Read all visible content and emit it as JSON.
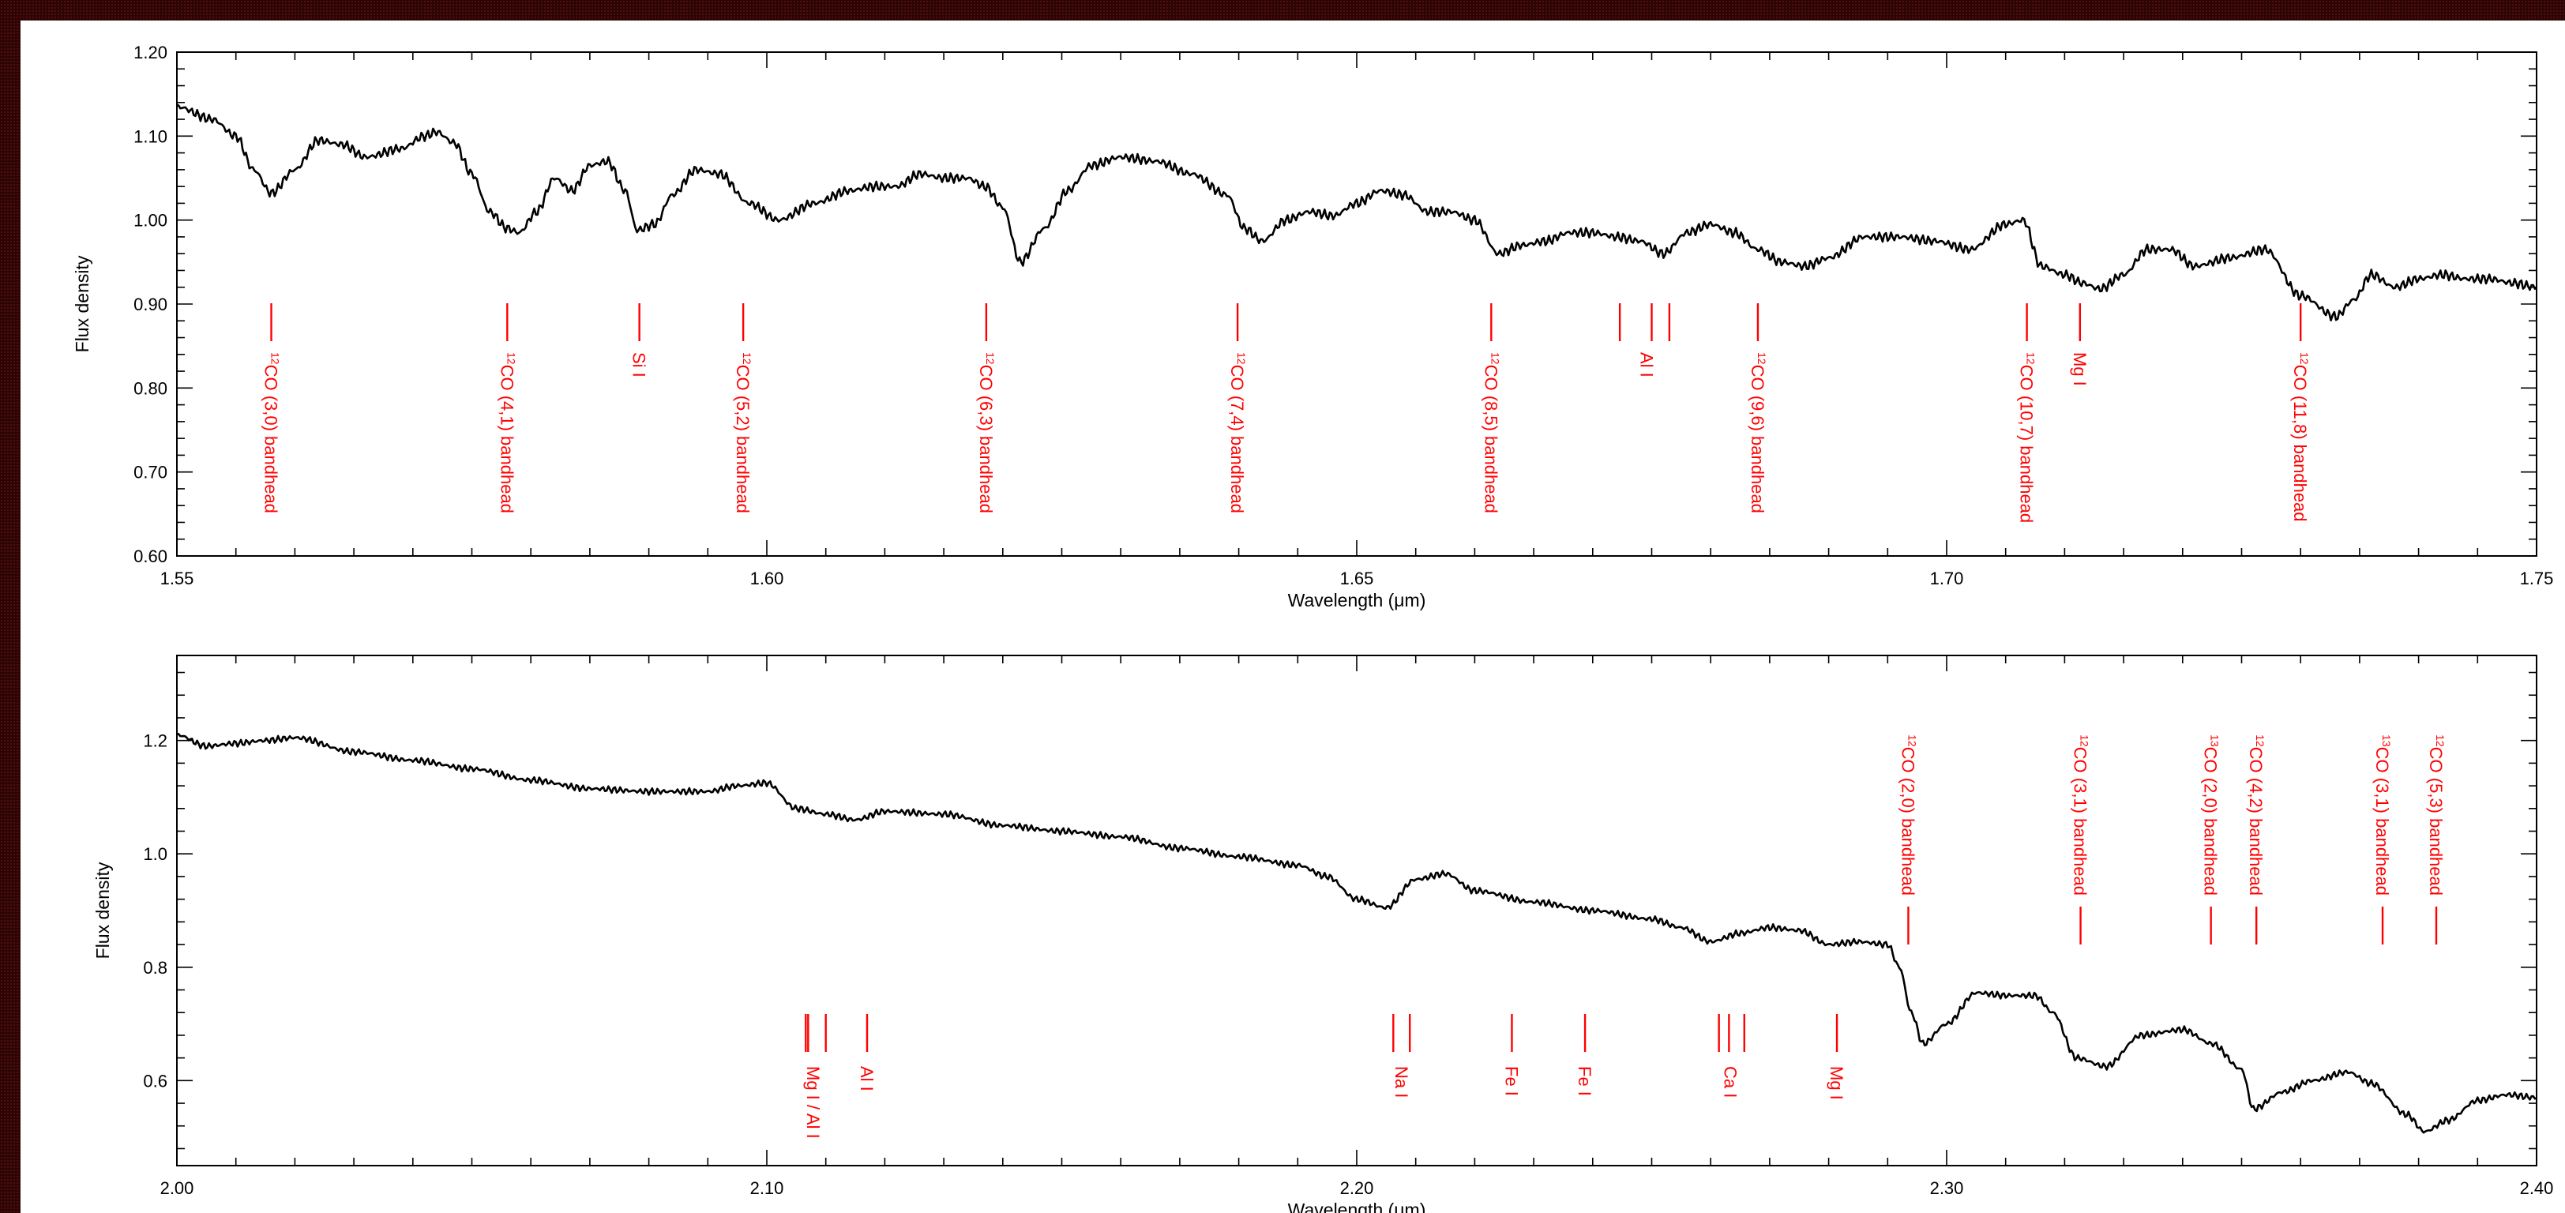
{
  "chart_data": [
    {
      "type": "line",
      "xlabel": "Wavelength (μm)",
      "ylabel": "Flux density",
      "xlim": [
        1.55,
        1.75
      ],
      "ylim": [
        0.6,
        1.2
      ],
      "xticks": [
        1.55,
        1.6,
        1.65,
        1.7,
        1.75
      ],
      "xtick_labels": [
        "1.55",
        "1.60",
        "1.65",
        "1.70",
        "1.75"
      ],
      "yticks": [
        0.6,
        0.7,
        0.8,
        0.9,
        1.0,
        1.1,
        1.2
      ],
      "ytick_labels": [
        "0.60",
        "0.70",
        "0.80",
        "0.90",
        "1.00",
        "1.10",
        "1.20"
      ],
      "grid": false,
      "line_color": "#000000",
      "annotation_color": "#ff0000",
      "series": [
        {
          "x": [
            1.55,
            1.553,
            1.555,
            1.5565,
            1.558,
            1.56,
            1.562,
            1.564,
            1.566,
            1.569,
            1.571,
            1.572,
            1.5735,
            1.575,
            1.5765,
            1.578,
            1.579,
            1.5805,
            1.582,
            1.5835,
            1.585,
            1.5865,
            1.588,
            1.589,
            1.5905,
            1.592,
            1.594,
            1.596,
            1.5985,
            1.601,
            1.604,
            1.607,
            1.609,
            1.611,
            1.613,
            1.615,
            1.617,
            1.6185,
            1.62,
            1.6215,
            1.6235,
            1.6255,
            1.6275,
            1.63,
            1.633,
            1.636,
            1.639,
            1.6405,
            1.642,
            1.644,
            1.646,
            1.648,
            1.65,
            1.652,
            1.654,
            1.656,
            1.658,
            1.66,
            1.662,
            1.664,
            1.666,
            1.668,
            1.67,
            1.672,
            1.674,
            1.676,
            1.678,
            1.68,
            1.682,
            1.684,
            1.686,
            1.688,
            1.69,
            1.693,
            1.696,
            1.699,
            1.702,
            1.705,
            1.7065,
            1.708,
            1.71,
            1.7115,
            1.713,
            1.715,
            1.717,
            1.719,
            1.721,
            1.724,
            1.727,
            1.73,
            1.733,
            1.7345,
            1.736,
            1.738,
            1.74,
            1.742,
            1.744,
            1.746,
            1.748,
            1.75
          ],
          "y": [
            1.135,
            1.12,
            1.1,
            1.06,
            1.032,
            1.06,
            1.095,
            1.09,
            1.075,
            1.085,
            1.1,
            1.105,
            1.092,
            1.055,
            1.01,
            0.99,
            0.985,
            1.01,
            1.05,
            1.035,
            1.065,
            1.07,
            1.035,
            0.988,
            0.995,
            1.03,
            1.06,
            1.055,
            1.02,
            1.0,
            1.02,
            1.035,
            1.04,
            1.04,
            1.055,
            1.05,
            1.05,
            1.04,
            1.015,
            0.95,
            0.99,
            1.035,
            1.065,
            1.075,
            1.07,
            1.055,
            1.03,
            0.99,
            0.975,
            1.0,
            1.01,
            1.005,
            1.02,
            1.035,
            1.03,
            1.01,
            1.01,
            1.0,
            0.96,
            0.97,
            0.975,
            0.985,
            0.985,
            0.98,
            0.975,
            0.96,
            0.985,
            0.995,
            0.985,
            0.965,
            0.95,
            0.945,
            0.955,
            0.98,
            0.98,
            0.975,
            0.965,
            0.995,
            1.0,
            0.945,
            0.935,
            0.925,
            0.918,
            0.935,
            0.965,
            0.965,
            0.945,
            0.955,
            0.965,
            0.91,
            0.885,
            0.905,
            0.935,
            0.92,
            0.93,
            0.935,
            0.93,
            0.93,
            0.925,
            0.92
          ]
        }
      ],
      "line_annotations": [
        {
          "label_main": "CO (3,0) bandhead",
          "sup": "12",
          "lines": [
            1.558
          ]
        },
        {
          "label_main": "CO (4,1) bandhead",
          "sup": "12",
          "lines": [
            1.578
          ]
        },
        {
          "label_main": "Si I",
          "sup": "",
          "lines": [
            1.5892
          ]
        },
        {
          "label_main": "CO (5,2) bandhead",
          "sup": "12",
          "lines": [
            1.598
          ]
        },
        {
          "label_main": "CO (6,3) bandhead",
          "sup": "12",
          "lines": [
            1.6186
          ]
        },
        {
          "label_main": "CO (7,4) bandhead",
          "sup": "12",
          "lines": [
            1.6399
          ]
        },
        {
          "label_main": "CO (8,5) bandhead",
          "sup": "12",
          "lines": [
            1.6614
          ]
        },
        {
          "label_main": "Al I",
          "sup": "",
          "lines": [
            1.6723,
            1.675,
            1.6765
          ]
        },
        {
          "label_main": "CO (9,6) bandhead",
          "sup": "12",
          "lines": [
            1.684
          ]
        },
        {
          "label_main": "CO (10,7) bandhead",
          "sup": "12",
          "lines": [
            1.7068
          ]
        },
        {
          "label_main": "Mg I",
          "sup": "",
          "lines": [
            1.7113
          ]
        },
        {
          "label_main": "CO (11,8) bandhead",
          "sup": "12",
          "lines": [
            1.73
          ]
        }
      ]
    },
    {
      "type": "line",
      "xlabel": "Wavelength (μm)",
      "ylabel": "Flux density",
      "xlim": [
        2.0,
        2.4
      ],
      "ylim": [
        0.45,
        1.35
      ],
      "xticks": [
        2.0,
        2.1,
        2.2,
        2.3,
        2.4
      ],
      "xtick_labels": [
        "2.00",
        "2.10",
        "2.20",
        "2.30",
        "2.40"
      ],
      "yticks": [
        0.6,
        0.8,
        1.0,
        1.2
      ],
      "ytick_labels": [
        "0.6",
        "0.8",
        "1.0",
        "1.2"
      ],
      "grid": false,
      "line_color": "#000000",
      "annotation_color": "#ff0000",
      "series": [
        {
          "x": [
            2.0,
            2.005,
            2.01,
            2.015,
            2.02,
            2.03,
            2.04,
            2.05,
            2.06,
            2.07,
            2.08,
            2.09,
            2.095,
            2.1,
            2.105,
            2.11,
            2.115,
            2.12,
            2.13,
            2.14,
            2.15,
            2.16,
            2.17,
            2.18,
            2.19,
            2.195,
            2.2,
            2.205,
            2.21,
            2.215,
            2.22,
            2.23,
            2.24,
            2.25,
            2.255,
            2.26,
            2.265,
            2.27,
            2.275,
            2.28,
            2.285,
            2.29,
            2.292,
            2.294,
            2.296,
            2.3,
            2.305,
            2.31,
            2.315,
            2.318,
            2.322,
            2.327,
            2.333,
            2.34,
            2.345,
            2.35,
            2.352,
            2.357,
            2.362,
            2.368,
            2.372,
            2.378,
            2.381,
            2.385,
            2.39,
            2.395,
            2.4
          ],
          "y": [
            1.21,
            1.19,
            1.195,
            1.2,
            1.205,
            1.18,
            1.165,
            1.15,
            1.13,
            1.115,
            1.11,
            1.11,
            1.12,
            1.125,
            1.08,
            1.07,
            1.06,
            1.075,
            1.07,
            1.05,
            1.04,
            1.03,
            1.01,
            0.995,
            0.98,
            0.96,
            0.92,
            0.905,
            0.955,
            0.965,
            0.935,
            0.915,
            0.9,
            0.885,
            0.87,
            0.845,
            0.86,
            0.87,
            0.865,
            0.84,
            0.845,
            0.84,
            0.8,
            0.72,
            0.665,
            0.7,
            0.755,
            0.75,
            0.75,
            0.72,
            0.64,
            0.625,
            0.68,
            0.69,
            0.665,
            0.62,
            0.55,
            0.58,
            0.6,
            0.615,
            0.595,
            0.54,
            0.51,
            0.53,
            0.565,
            0.575,
            0.57
          ]
        }
      ],
      "line_annotations": [
        {
          "label_main": "Mg I / Al I",
          "sup": "",
          "lines": [
            2.1066,
            2.107,
            2.11
          ],
          "side": "below"
        },
        {
          "label_main": "Al I",
          "sup": "",
          "lines": [
            2.117
          ],
          "side": "below"
        },
        {
          "label_main": "Na I",
          "sup": "",
          "lines": [
            2.2062,
            2.209
          ],
          "side": "below"
        },
        {
          "label_main": "Fe I",
          "sup": "",
          "lines": [
            2.2263
          ],
          "side": "below"
        },
        {
          "label_main": "Fe I",
          "sup": "",
          "lines": [
            2.2387
          ],
          "side": "below"
        },
        {
          "label_main": "Ca I",
          "sup": "",
          "lines": [
            2.2614,
            2.2631,
            2.2657
          ],
          "side": "below"
        },
        {
          "label_main": "Mg I",
          "sup": "",
          "lines": [
            2.2814
          ],
          "side": "below"
        },
        {
          "label_main": "CO (2,0) bandhead",
          "sup": "12",
          "lines": [
            2.2935
          ],
          "side": "above"
        },
        {
          "label_main": "CO (3,1) bandhead",
          "sup": "12",
          "lines": [
            2.3227
          ],
          "side": "above"
        },
        {
          "label_main": "CO (2,0) bandhead",
          "sup": "13",
          "lines": [
            2.3448
          ],
          "side": "above"
        },
        {
          "label_main": "CO (4,2) bandhead",
          "sup": "12",
          "lines": [
            2.3525
          ],
          "side": "above"
        },
        {
          "label_main": "CO (3,1) bandhead",
          "sup": "13",
          "lines": [
            2.3739
          ],
          "side": "above"
        },
        {
          "label_main": "CO (5,3) bandhead",
          "sup": "12",
          "lines": [
            2.383
          ],
          "side": "above"
        }
      ]
    }
  ]
}
